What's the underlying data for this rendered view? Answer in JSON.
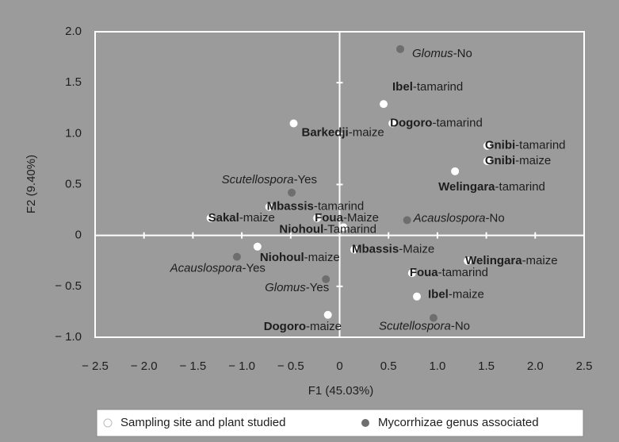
{
  "chart_data": {
    "type": "scatter",
    "xlabel": "F1 (45.03%)",
    "ylabel": "F2 (9.40%)",
    "xlim": [
      -2.5,
      2.5
    ],
    "ylim": [
      -1.0,
      2.0
    ],
    "xticks": [
      {
        "value": -2.5,
        "label": "− 2.5"
      },
      {
        "value": -2.0,
        "label": "− 2.0"
      },
      {
        "value": -1.5,
        "label": "− 1.5"
      },
      {
        "value": -1.0,
        "label": "− 1.0"
      },
      {
        "value": -0.5,
        "label": "− 0.5"
      },
      0,
      0.5,
      {
        "value": 1.0,
        "label": "1.0"
      },
      1.5,
      {
        "value": 2.0,
        "label": "2.0"
      },
      2.5
    ],
    "yticks": [
      {
        "value": -1.0,
        "label": "− 1.0"
      },
      {
        "value": -0.5,
        "label": "− 0.5"
      },
      0,
      0.5,
      {
        "value": 1.0,
        "label": "1.0"
      },
      1.5,
      {
        "value": 2.0,
        "label": "2.0"
      }
    ],
    "legend": "bottom",
    "series": [
      {
        "name": "Sampling site and plant studied",
        "color": "#ffffff",
        "label_style": "bold",
        "x": [
          0.45,
          0.54,
          -0.47,
          1.51,
          1.51,
          1.18,
          -0.72,
          -1.32,
          -0.23,
          0.04,
          -0.84,
          0.15,
          1.31,
          0.74,
          0.79,
          -0.12
        ],
        "values": [
          1.29,
          1.1,
          1.1,
          0.88,
          0.73,
          0.63,
          0.28,
          0.17,
          0.17,
          0.08,
          -0.11,
          -0.14,
          -0.25,
          -0.37,
          -0.6,
          -0.78
        ],
        "labels": [
          [
            "Ibel",
            "-tamarind"
          ],
          [
            "Dogoro",
            "-tamarind"
          ],
          [
            "Barkedji",
            "-maize"
          ],
          [
            "Gnibi",
            "-tamarind"
          ],
          [
            "Gnibi",
            "-maize"
          ],
          [
            "Welingara",
            "-tamarind"
          ],
          [
            "Mbassis",
            "-tamarind"
          ],
          [
            "Sakal",
            "-maize"
          ],
          [
            "Foua",
            "-Maize"
          ],
          [
            "Niohoul",
            "-Tamarind"
          ],
          [
            "Niohoul",
            "-maize"
          ],
          [
            "Mbassis",
            "-Maize"
          ],
          [
            "Welingara",
            "-maize"
          ],
          [
            "Foua",
            "-tamarind"
          ],
          [
            "Ibel",
            "-maize"
          ],
          [
            "Dogoro",
            "-maize"
          ]
        ]
      },
      {
        "name": "Mycorrhizae genus associated",
        "color": "#6e6e6e",
        "label_style": "italic",
        "x": [
          0.62,
          -0.49,
          0.69,
          -1.05,
          -0.14,
          0.96
        ],
        "values": [
          1.83,
          0.42,
          0.15,
          -0.21,
          -0.43,
          -0.81
        ],
        "labels": [
          [
            "Glomus",
            "-No"
          ],
          [
            "Scutellospora",
            "-Yes"
          ],
          [
            "Acauslospora",
            "-No"
          ],
          [
            "Acauslospora",
            "-Yes"
          ],
          [
            "Glomus",
            "-Yes"
          ],
          [
            "Scutellospora",
            "-No"
          ]
        ]
      }
    ]
  }
}
